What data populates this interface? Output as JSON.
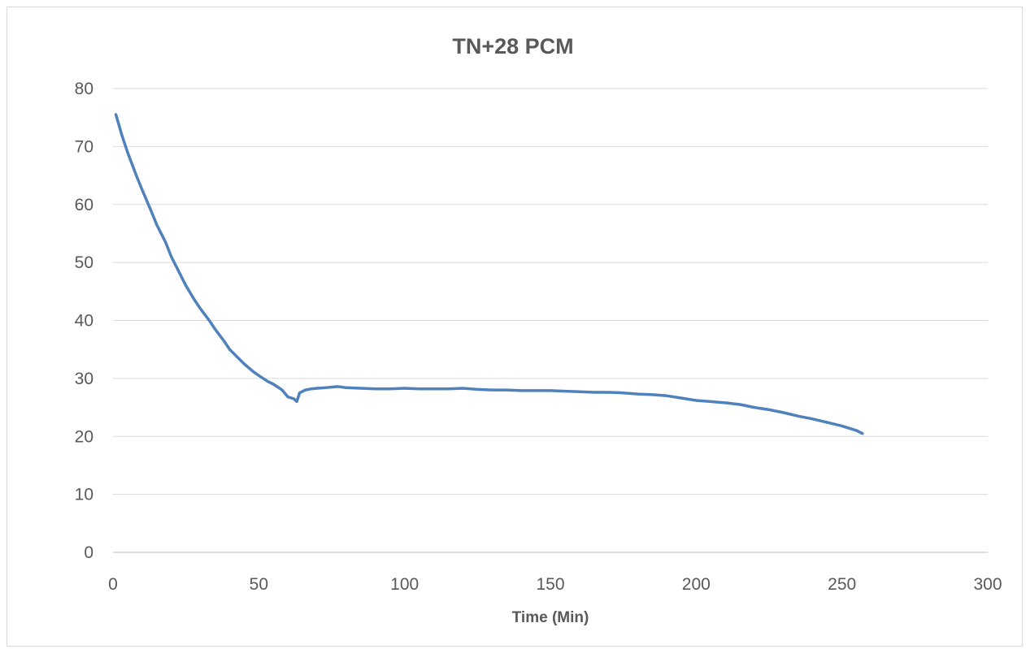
{
  "chart_data": {
    "type": "line",
    "title": "TN+28 PCM",
    "xlabel": "Time (Min)",
    "ylabel": "",
    "xlim": [
      0,
      300
    ],
    "ylim": [
      0,
      80
    ],
    "xticks": [
      "0",
      "50",
      "100",
      "150",
      "200",
      "250",
      "300"
    ],
    "yticks": [
      "0",
      "10",
      "20",
      "30",
      "40",
      "50",
      "60",
      "70",
      "80"
    ],
    "grid": true,
    "legend": "none",
    "series_color": "#4f81bd",
    "series": [
      {
        "x": [
          1,
          3,
          5,
          8,
          10,
          13,
          15,
          18,
          20,
          23,
          25,
          28,
          30,
          33,
          35,
          38,
          40,
          43,
          45,
          48,
          50,
          53,
          55,
          58,
          60,
          62,
          63,
          64,
          66,
          68,
          70,
          73,
          75,
          77,
          80,
          85,
          90,
          95,
          100,
          105,
          110,
          115,
          120,
          125,
          130,
          135,
          140,
          145,
          150,
          155,
          160,
          165,
          170,
          175,
          180,
          185,
          190,
          195,
          200,
          205,
          210,
          215,
          220,
          225,
          230,
          235,
          240,
          245,
          250,
          255,
          257
        ],
        "y": [
          75.5,
          72,
          69,
          65,
          62.5,
          59,
          56.5,
          53.5,
          51,
          48,
          46,
          43.5,
          42,
          40,
          38.5,
          36.5,
          35,
          33.5,
          32.5,
          31.2,
          30.5,
          29.5,
          29,
          28,
          26.8,
          26.5,
          26,
          27.5,
          28,
          28.2,
          28.3,
          28.4,
          28.5,
          28.6,
          28.4,
          28.3,
          28.2,
          28.2,
          28.3,
          28.2,
          28.2,
          28.2,
          28.3,
          28.1,
          28,
          28,
          27.9,
          27.9,
          27.9,
          27.8,
          27.7,
          27.6,
          27.6,
          27.5,
          27.3,
          27.2,
          27,
          26.6,
          26.2,
          26,
          25.8,
          25.5,
          25,
          24.6,
          24.1,
          23.5,
          23,
          22.4,
          21.8,
          21,
          20.5
        ]
      }
    ]
  }
}
